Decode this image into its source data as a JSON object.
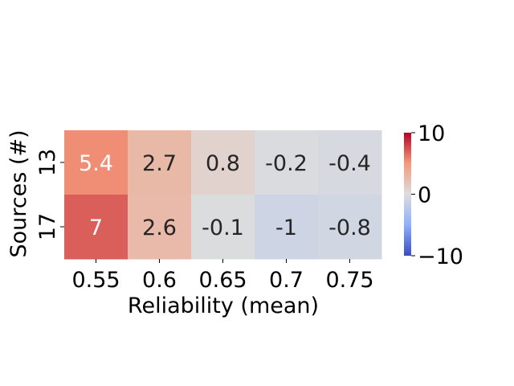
{
  "chart_data": {
    "type": "heatmap",
    "title": "",
    "xlabel": "Reliability (mean)",
    "ylabel": "Sources (#)",
    "x_categories": [
      "0.55",
      "0.6",
      "0.65",
      "0.7",
      "0.75"
    ],
    "y_categories": [
      "13",
      "17"
    ],
    "values": [
      [
        5.4,
        2.7,
        0.8,
        -0.2,
        -0.4
      ],
      [
        7,
        2.6,
        -0.1,
        -1,
        -0.8
      ]
    ],
    "annotations": [
      [
        "5.4",
        "2.7",
        "0.8",
        "-0.2",
        "-0.4"
      ],
      [
        "7",
        "2.6",
        "-0.1",
        "-1",
        "-0.8"
      ]
    ],
    "colormap": "coolwarm",
    "vmin": -10,
    "vmax": 10,
    "colorbar": {
      "ticks": [
        10,
        0,
        -10
      ],
      "tick_labels": [
        "10",
        "0",
        "−10"
      ]
    },
    "colors": {
      "low": "#3b4cc0",
      "mid": "#dddddd",
      "high": "#b40426",
      "text_dark": "#262626",
      "text_light": "#ffffff"
    }
  }
}
